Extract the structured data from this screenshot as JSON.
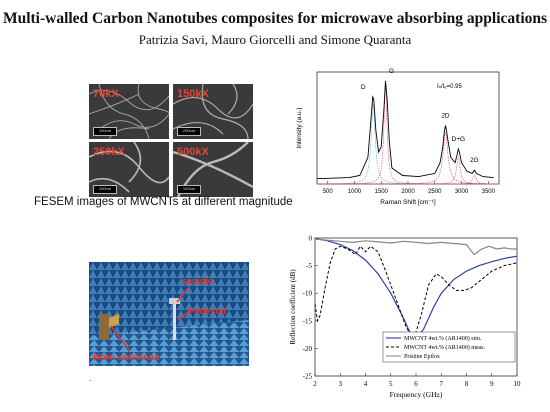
{
  "title": "Multi-walled Carbon Nanotubes composites for microwave absorbing applications",
  "authors": "Patrizia Savi, Mauro Giorcelli and Simone Quaranta",
  "fesem": {
    "caption": "FESEM images of MWCNTs at different magnitude",
    "tiles": [
      {
        "mag": "70kX",
        "scale": "100nm"
      },
      {
        "mag": "150kX",
        "scale": "200nm"
      },
      {
        "mag": "250kX",
        "scale": "100nm"
      },
      {
        "mag": "500kX",
        "scale": "100nm"
      }
    ]
  },
  "setup": {
    "sample_label": "sample",
    "pedestal_label": "Pedestal",
    "horn_label": "Horn antennas",
    "label_color": "#e8352b"
  },
  "chart_data": [
    {
      "type": "line",
      "xlabel": "Raman Shift [cm⁻¹]",
      "ylabel": "Intensity (a.u.)",
      "xlim": [
        300,
        3700
      ],
      "xticks": [
        500,
        1000,
        1500,
        2000,
        2500,
        3000,
        3500
      ],
      "annotation": "Iₙ/Iₑ=0.95",
      "peaks": [
        {
          "label": "D",
          "x": 1350
        },
        {
          "label": "G",
          "x": 1580
        },
        {
          "label": "2D",
          "x": 2700
        },
        {
          "label": "D+G",
          "x": 2940
        },
        {
          "label": "2G",
          "x": 3240
        }
      ],
      "series": [
        {
          "color": "#000000",
          "x": [
            300,
            900,
            1100,
            1250,
            1300,
            1340,
            1360,
            1400,
            1450,
            1500,
            1550,
            1580,
            1610,
            1650,
            1700,
            1900,
            2200,
            2500,
            2600,
            2650,
            2680,
            2700,
            2720,
            2750,
            2800,
            2880,
            2920,
            2940,
            2960,
            3000,
            3100,
            3200,
            3240,
            3280,
            3400,
            3600
          ],
          "values": [
            0.05,
            0.06,
            0.08,
            0.25,
            0.55,
            0.82,
            0.8,
            0.5,
            0.3,
            0.35,
            0.7,
            0.97,
            0.8,
            0.4,
            0.15,
            0.08,
            0.07,
            0.1,
            0.2,
            0.35,
            0.5,
            0.55,
            0.5,
            0.4,
            0.25,
            0.2,
            0.28,
            0.33,
            0.3,
            0.2,
            0.12,
            0.1,
            0.13,
            0.1,
            0.07,
            0.06
          ]
        }
      ]
    },
    {
      "type": "line",
      "xlabel": "Frequency (GHz)",
      "ylabel": "Reflection coefficient (dB)",
      "xlim": [
        2,
        10
      ],
      "ylim": [
        -25,
        0
      ],
      "xticks": [
        2,
        3,
        4,
        5,
        6,
        7,
        8,
        9,
        10
      ],
      "yticks": [
        0,
        -5,
        -10,
        -15,
        -20,
        -25
      ],
      "grid": false,
      "legend_position": "bottom-right",
      "series": [
        {
          "name": "MWCNT 4wt.% (AR1400) sim.",
          "color": "#2b3fa8",
          "style": "solid",
          "x": [
            2,
            2.5,
            3,
            3.5,
            4,
            4.5,
            5,
            5.5,
            5.8,
            6,
            6.3,
            6.7,
            7,
            7.5,
            8,
            8.5,
            9,
            9.5,
            10
          ],
          "values": [
            -0.1,
            -0.5,
            -1.2,
            -2.3,
            -4,
            -6.5,
            -10,
            -14.5,
            -17.5,
            -18.2,
            -16.5,
            -12.5,
            -10,
            -7.5,
            -6,
            -5,
            -4.3,
            -3.7,
            -3.3
          ]
        },
        {
          "name": "MWCNT 4wt.% (AR1400) meas.",
          "color": "#000000",
          "style": "dashed",
          "x": [
            2,
            2.1,
            2.2,
            2.4,
            2.6,
            2.8,
            3,
            3.3,
            3.6,
            3.8,
            4,
            4.2,
            4.5,
            4.8,
            5.2,
            5.6,
            5.9,
            6.2,
            6.5,
            6.8,
            7,
            7.3,
            7.6,
            7.9,
            8.2,
            8.6,
            9,
            9.5,
            10
          ],
          "values": [
            -12,
            -15,
            -14,
            -9,
            -4.5,
            -2,
            -1.5,
            -2,
            -3,
            -1.5,
            -2.5,
            -1.5,
            -2.5,
            -6,
            -11,
            -16,
            -18.5,
            -14,
            -8.5,
            -6.5,
            -7,
            -8.5,
            -9.5,
            -9.5,
            -9,
            -7.5,
            -6,
            -5,
            -4.5
          ]
        },
        {
          "name": "Pristine Epilox",
          "color": "#888888",
          "style": "solid",
          "x": [
            2,
            2.5,
            3,
            3.5,
            4,
            4.5,
            5,
            5.5,
            6,
            6.5,
            7,
            7.5,
            8,
            8.3,
            8.6,
            8.9,
            9.2,
            9.5,
            9.8,
            10
          ],
          "values": [
            -0.2,
            -0.4,
            -0.6,
            -0.8,
            -0.5,
            -0.7,
            -0.9,
            -0.6,
            -0.8,
            -1,
            -0.8,
            -1,
            -1.2,
            -3,
            -2,
            -1.5,
            -2,
            -1.8,
            -2,
            -2
          ]
        }
      ]
    }
  ]
}
